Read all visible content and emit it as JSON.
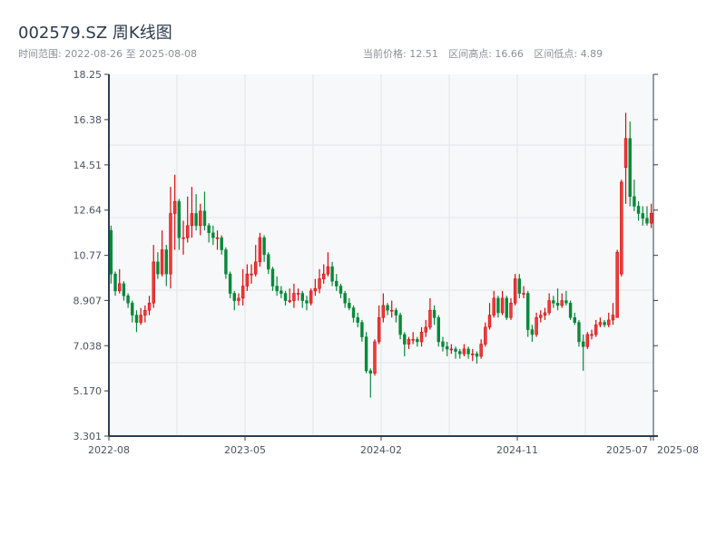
{
  "header": {
    "title": "002579.SZ 周K线图",
    "range_label": "时间范围: 2022-08-26 至 2025-08-08",
    "current_price": "当前价格: 12.51",
    "period_high": "区间高点: 16.66",
    "period_low": "区间低点: 4.89"
  },
  "colors": {
    "up": "#d40c0c",
    "up_fill": "#ee3b3b",
    "down": "#08883a",
    "plot_bg": "#f7f8fa",
    "grid": "#e2e5ea",
    "axis": "#2c3e50"
  },
  "chart_data": {
    "type": "candlestick",
    "title": "002579.SZ 周K线图",
    "interval": "weekly",
    "start_date": "2022-08-26",
    "end_date": "2025-08-08",
    "ylim": [
      3.301,
      18.25
    ],
    "y_ticks": [
      "18.25",
      "16.38",
      "14.51",
      "12.64",
      "10.77",
      "8.907",
      "7.038",
      "5.170",
      "3.301"
    ],
    "x_ticks": [
      "2022-08",
      "2023-05",
      "2024-02",
      "2024-11",
      "2025-07",
      "2025-08"
    ],
    "grid": true,
    "ohlc_fields": [
      "open",
      "high",
      "low",
      "close"
    ],
    "ohlc": [
      [
        11.8,
        12.0,
        9.6,
        10.0
      ],
      [
        10.0,
        10.1,
        9.1,
        9.3
      ],
      [
        9.3,
        10.2,
        9.2,
        9.6
      ],
      [
        9.6,
        9.7,
        8.9,
        9.1
      ],
      [
        9.1,
        9.2,
        8.6,
        8.8
      ],
      [
        8.8,
        8.9,
        8.0,
        8.3
      ],
      [
        8.3,
        8.5,
        7.6,
        8.0
      ],
      [
        8.0,
        8.6,
        7.9,
        8.3
      ],
      [
        8.3,
        8.7,
        8.0,
        8.5
      ],
      [
        8.5,
        9.1,
        8.3,
        8.8
      ],
      [
        8.8,
        11.2,
        8.6,
        10.5
      ],
      [
        10.5,
        10.9,
        9.8,
        10.0
      ],
      [
        10.0,
        11.8,
        9.9,
        11.0
      ],
      [
        11.0,
        11.2,
        9.5,
        10.0
      ],
      [
        10.0,
        13.6,
        9.4,
        12.5
      ],
      [
        12.5,
        14.1,
        11.0,
        13.0
      ],
      [
        13.0,
        13.1,
        11.0,
        11.5
      ],
      [
        11.5,
        12.2,
        10.8,
        11.5
      ],
      [
        11.5,
        13.2,
        11.3,
        12.0
      ],
      [
        12.0,
        13.6,
        11.5,
        12.5
      ],
      [
        12.5,
        13.3,
        11.8,
        12.0
      ],
      [
        12.0,
        12.9,
        11.6,
        12.6
      ],
      [
        12.6,
        13.4,
        11.8,
        12.0
      ],
      [
        12.0,
        12.1,
        11.3,
        11.7
      ],
      [
        11.7,
        12.0,
        11.2,
        11.5
      ],
      [
        11.5,
        11.8,
        11.0,
        11.5
      ],
      [
        11.5,
        11.6,
        10.8,
        11.0
      ],
      [
        11.0,
        11.1,
        9.8,
        10.0
      ],
      [
        10.0,
        10.1,
        9.0,
        9.2
      ],
      [
        9.2,
        9.3,
        8.5,
        8.9
      ],
      [
        8.9,
        9.2,
        8.7,
        9.0
      ],
      [
        9.0,
        10.2,
        8.7,
        9.5
      ],
      [
        9.5,
        10.4,
        9.3,
        10.0
      ],
      [
        10.0,
        10.4,
        9.6,
        10.0
      ],
      [
        10.0,
        11.2,
        9.9,
        10.5
      ],
      [
        10.5,
        11.7,
        10.3,
        11.5
      ],
      [
        11.5,
        11.6,
        10.5,
        10.8
      ],
      [
        10.8,
        10.9,
        10.0,
        10.2
      ],
      [
        10.2,
        10.3,
        9.3,
        9.5
      ],
      [
        9.5,
        9.9,
        9.1,
        9.3
      ],
      [
        9.3,
        9.5,
        9.0,
        9.2
      ],
      [
        9.2,
        9.3,
        8.7,
        8.9
      ],
      [
        8.9,
        9.4,
        8.8,
        8.9
      ],
      [
        8.9,
        9.6,
        8.6,
        9.2
      ],
      [
        9.2,
        9.4,
        8.9,
        9.2
      ],
      [
        9.2,
        9.3,
        8.6,
        8.9
      ],
      [
        8.9,
        9.1,
        8.5,
        8.8
      ],
      [
        8.8,
        9.4,
        8.7,
        9.3
      ],
      [
        9.3,
        9.8,
        9.1,
        9.4
      ],
      [
        9.4,
        10.2,
        9.2,
        9.8
      ],
      [
        9.8,
        10.4,
        9.6,
        10.0
      ],
      [
        10.0,
        10.9,
        9.9,
        10.3
      ],
      [
        10.3,
        10.5,
        9.5,
        9.7
      ],
      [
        9.7,
        10.0,
        9.3,
        9.5
      ],
      [
        9.5,
        9.6,
        9.0,
        9.2
      ],
      [
        9.2,
        9.3,
        8.6,
        8.8
      ],
      [
        8.8,
        9.0,
        8.5,
        8.6
      ],
      [
        8.6,
        8.7,
        8.0,
        8.2
      ],
      [
        8.2,
        8.4,
        7.8,
        8.0
      ],
      [
        8.0,
        8.1,
        7.2,
        7.4
      ],
      [
        7.4,
        7.6,
        5.9,
        6.0
      ],
      [
        6.0,
        6.1,
        4.89,
        5.9
      ],
      [
        5.9,
        7.3,
        5.8,
        7.2
      ],
      [
        7.2,
        8.7,
        7.1,
        8.2
      ],
      [
        8.2,
        9.2,
        8.0,
        8.7
      ],
      [
        8.7,
        8.8,
        8.3,
        8.5
      ],
      [
        8.5,
        8.9,
        8.2,
        8.5
      ],
      [
        8.5,
        8.6,
        8.0,
        8.3
      ],
      [
        8.3,
        8.4,
        7.3,
        7.5
      ],
      [
        7.5,
        7.6,
        6.6,
        7.1
      ],
      [
        7.1,
        7.4,
        6.9,
        7.3
      ],
      [
        7.3,
        7.6,
        7.1,
        7.3
      ],
      [
        7.3,
        7.4,
        7.0,
        7.2
      ],
      [
        7.2,
        7.8,
        7.0,
        7.6
      ],
      [
        7.6,
        8.1,
        7.4,
        7.8
      ],
      [
        7.8,
        9.0,
        7.7,
        8.5
      ],
      [
        8.5,
        8.7,
        7.9,
        8.2
      ],
      [
        8.2,
        8.3,
        7.0,
        7.2
      ],
      [
        7.2,
        7.4,
        6.8,
        7.0
      ],
      [
        7.0,
        7.2,
        6.6,
        6.9
      ],
      [
        6.9,
        7.1,
        6.7,
        6.9
      ],
      [
        6.9,
        7.0,
        6.5,
        6.8
      ],
      [
        6.8,
        6.9,
        6.5,
        6.7
      ],
      [
        6.7,
        7.1,
        6.6,
        6.9
      ],
      [
        6.9,
        7.0,
        6.5,
        6.7
      ],
      [
        6.7,
        6.9,
        6.4,
        6.7
      ],
      [
        6.7,
        6.8,
        6.3,
        6.6
      ],
      [
        6.6,
        7.3,
        6.5,
        7.1
      ],
      [
        7.1,
        8.0,
        7.0,
        7.8
      ],
      [
        7.8,
        8.8,
        7.7,
        8.3
      ],
      [
        8.3,
        9.3,
        8.2,
        9.0
      ],
      [
        9.0,
        9.1,
        8.2,
        8.4
      ],
      [
        8.4,
        9.3,
        8.3,
        9.0
      ],
      [
        9.0,
        9.1,
        8.1,
        8.2
      ],
      [
        8.2,
        9.0,
        8.1,
        8.8
      ],
      [
        8.8,
        10.0,
        8.7,
        9.8
      ],
      [
        9.8,
        10.0,
        9.0,
        9.2
      ],
      [
        9.2,
        9.5,
        9.0,
        9.2
      ],
      [
        9.2,
        9.3,
        7.4,
        7.7
      ],
      [
        7.7,
        7.9,
        7.2,
        7.5
      ],
      [
        7.5,
        8.4,
        7.4,
        8.2
      ],
      [
        8.2,
        8.5,
        8.0,
        8.3
      ],
      [
        8.3,
        8.6,
        8.1,
        8.4
      ],
      [
        8.4,
        9.2,
        8.3,
        8.9
      ],
      [
        8.9,
        9.1,
        8.6,
        8.8
      ],
      [
        8.8,
        9.4,
        8.5,
        8.7
      ],
      [
        8.7,
        9.2,
        8.6,
        8.9
      ],
      [
        8.9,
        9.3,
        8.7,
        8.8
      ],
      [
        8.8,
        8.9,
        8.1,
        8.2
      ],
      [
        8.2,
        8.4,
        7.9,
        8.0
      ],
      [
        8.0,
        8.1,
        7.0,
        7.2
      ],
      [
        7.2,
        7.5,
        6.0,
        7.0
      ],
      [
        7.0,
        7.6,
        6.9,
        7.5
      ],
      [
        7.5,
        7.7,
        7.3,
        7.5
      ],
      [
        7.5,
        8.1,
        7.4,
        7.9
      ],
      [
        7.9,
        8.2,
        7.8,
        8.0
      ],
      [
        8.0,
        8.1,
        7.8,
        7.9
      ],
      [
        7.9,
        8.4,
        7.8,
        8.1
      ],
      [
        8.1,
        8.8,
        7.9,
        8.3
      ],
      [
        8.2,
        11.0,
        8.2,
        10.9
      ],
      [
        10.0,
        13.9,
        9.9,
        13.8
      ],
      [
        14.4,
        16.66,
        12.9,
        15.6
      ],
      [
        15.6,
        16.3,
        12.8,
        13.2
      ],
      [
        13.2,
        13.9,
        12.6,
        12.8
      ],
      [
        12.8,
        13.0,
        12.2,
        12.5
      ],
      [
        12.5,
        12.8,
        12.0,
        12.3
      ],
      [
        12.3,
        12.8,
        12.0,
        12.1
      ],
      [
        12.1,
        12.9,
        11.9,
        12.51
      ]
    ]
  }
}
